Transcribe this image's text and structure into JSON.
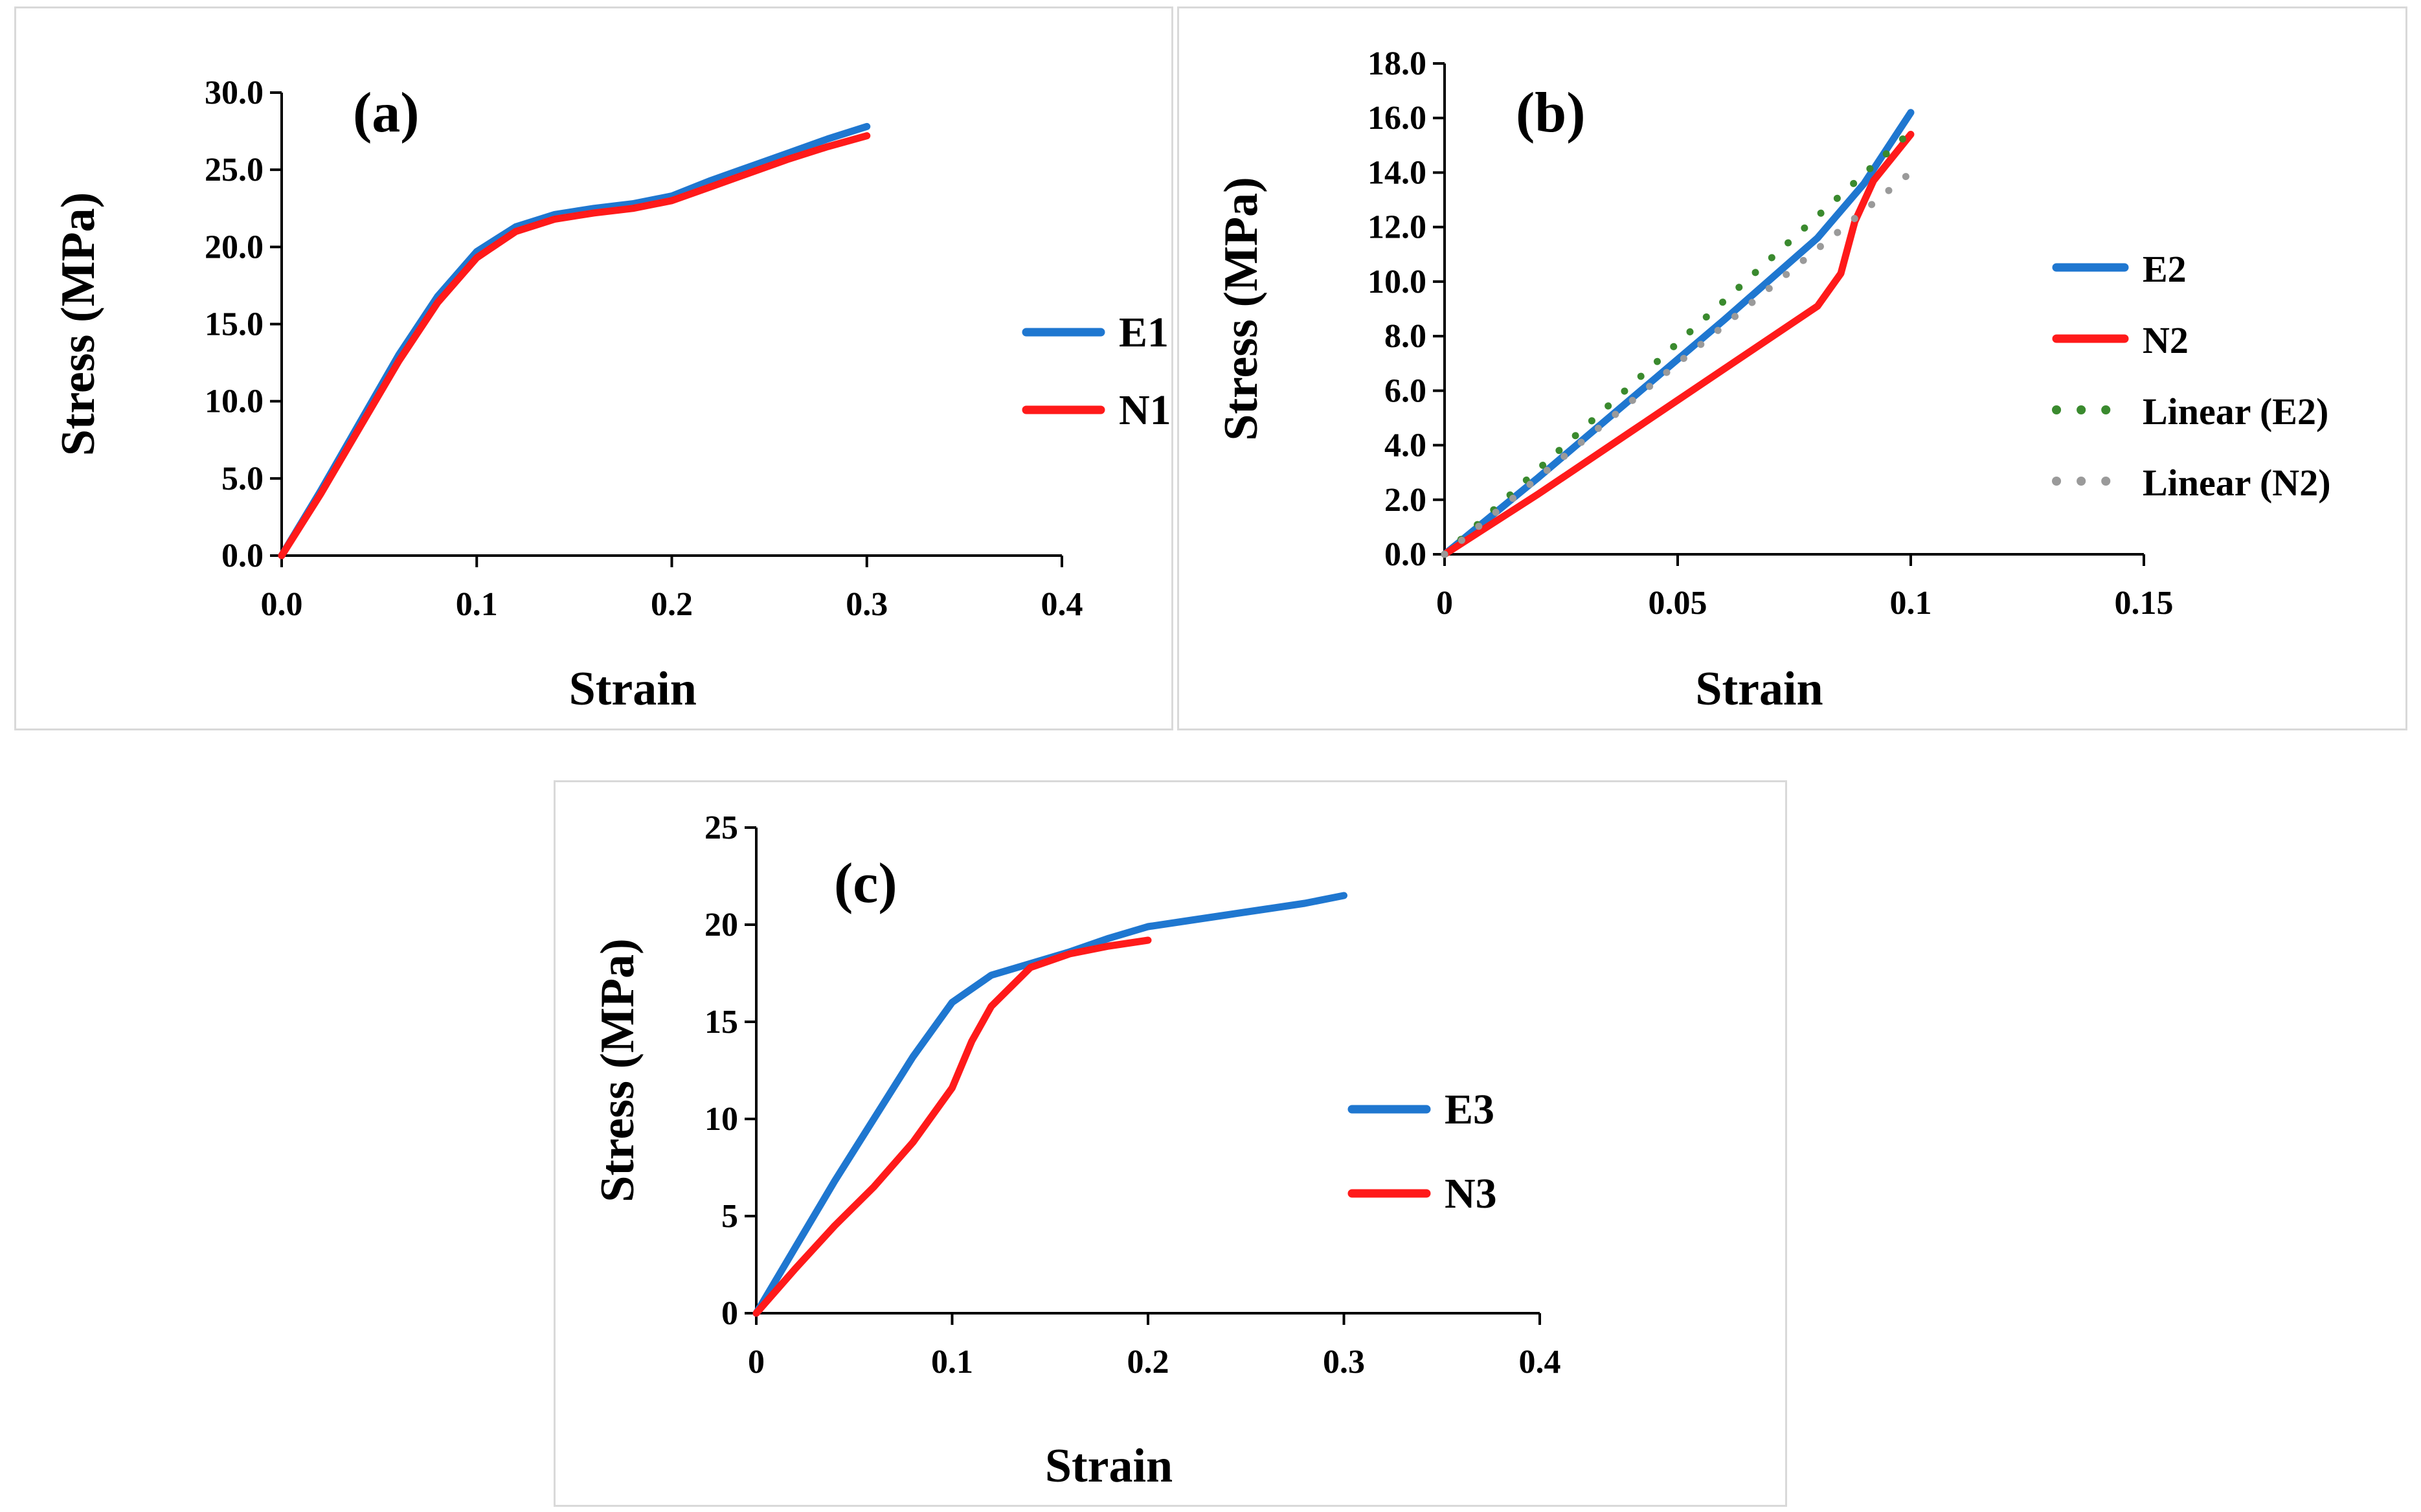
{
  "chart_data": [
    {
      "id": "a",
      "type": "line",
      "panel_label": "(a)",
      "xlabel": "Strain",
      "ylabel": "Stress (MPa)",
      "xlim": [
        0,
        0.4
      ],
      "ylim": [
        0,
        30
      ],
      "xticks": [
        "0.0",
        "0.1",
        "0.2",
        "0.3",
        "0.4"
      ],
      "xtick_values": [
        0,
        0.1,
        0.2,
        0.3,
        0.4
      ],
      "yticks": [
        "0.0",
        "5.0",
        "10.0",
        "15.0",
        "20.0",
        "25.0",
        "30.0"
      ],
      "ytick_values": [
        0,
        5,
        10,
        15,
        20,
        25,
        30
      ],
      "legend_position": "right",
      "series": [
        {
          "name": "E1",
          "color": "#1f77d0",
          "style": "solid",
          "x": [
            0,
            0.02,
            0.04,
            0.06,
            0.08,
            0.1,
            0.12,
            0.14,
            0.16,
            0.18,
            0.2,
            0.22,
            0.24,
            0.26,
            0.28,
            0.3
          ],
          "y": [
            0,
            4.2,
            8.6,
            13.0,
            16.8,
            19.7,
            21.3,
            22.1,
            22.5,
            22.8,
            23.3,
            24.3,
            25.2,
            26.1,
            27.0,
            27.8
          ]
        },
        {
          "name": "N1",
          "color": "#ff1a1a",
          "style": "solid",
          "x": [
            0,
            0.02,
            0.04,
            0.06,
            0.08,
            0.1,
            0.12,
            0.14,
            0.16,
            0.18,
            0.2,
            0.22,
            0.24,
            0.26,
            0.28,
            0.3
          ],
          "y": [
            0,
            4.0,
            8.3,
            12.6,
            16.4,
            19.3,
            21.0,
            21.8,
            22.2,
            22.5,
            23.0,
            23.9,
            24.8,
            25.7,
            26.5,
            27.2
          ]
        }
      ]
    },
    {
      "id": "b",
      "type": "line",
      "panel_label": "(b)",
      "xlabel": "Strain",
      "ylabel": "Stress (MPa)",
      "xlim": [
        0,
        0.15
      ],
      "ylim": [
        0,
        18
      ],
      "xticks": [
        "0",
        "0.05",
        "0.1",
        "0.15"
      ],
      "xtick_values": [
        0,
        0.05,
        0.1,
        0.15
      ],
      "yticks": [
        "0.0",
        "2.0",
        "4.0",
        "6.0",
        "8.0",
        "10.0",
        "12.0",
        "14.0",
        "16.0",
        "18.0"
      ],
      "ytick_values": [
        0,
        2,
        4,
        6,
        8,
        10,
        12,
        14,
        16,
        18
      ],
      "legend_position": "right",
      "series": [
        {
          "name": "E2",
          "color": "#1f77d0",
          "style": "solid",
          "x": [
            0,
            0.02,
            0.04,
            0.06,
            0.08,
            0.09,
            0.1
          ],
          "y": [
            0,
            2.8,
            5.7,
            8.6,
            11.6,
            13.6,
            16.2
          ]
        },
        {
          "name": "N2",
          "color": "#ff1a1a",
          "style": "solid",
          "x": [
            0,
            0.02,
            0.04,
            0.06,
            0.08,
            0.085,
            0.088,
            0.092,
            0.1
          ],
          "y": [
            0,
            2.2,
            4.5,
            6.8,
            9.1,
            10.3,
            12.2,
            13.7,
            15.4
          ]
        },
        {
          "name": "Linear (E2)",
          "color": "#3a8a2e",
          "style": "dotted",
          "x": [
            0,
            0.1
          ],
          "y": [
            0,
            15.5
          ]
        },
        {
          "name": "Linear (N2)",
          "color": "#9a9a9a",
          "style": "dotted",
          "x": [
            0,
            0.1
          ],
          "y": [
            0,
            14.0
          ]
        }
      ]
    },
    {
      "id": "c",
      "type": "line",
      "panel_label": "(c)",
      "xlabel": "Strain",
      "ylabel": "Stress (MPa)",
      "xlim": [
        0,
        0.4
      ],
      "ylim": [
        0,
        25
      ],
      "xticks": [
        "0",
        "0.1",
        "0.2",
        "0.3",
        "0.4"
      ],
      "xtick_values": [
        0,
        0.1,
        0.2,
        0.3,
        0.4
      ],
      "yticks": [
        "0",
        "5",
        "10",
        "15",
        "20",
        "25"
      ],
      "ytick_values": [
        0,
        5,
        10,
        15,
        20,
        25
      ],
      "legend_position": "right",
      "series": [
        {
          "name": "E3",
          "color": "#1f77d0",
          "style": "solid",
          "x": [
            0,
            0.02,
            0.04,
            0.06,
            0.08,
            0.1,
            0.12,
            0.14,
            0.16,
            0.18,
            0.2,
            0.22,
            0.24,
            0.26,
            0.28,
            0.3
          ],
          "y": [
            0,
            3.4,
            6.8,
            10.0,
            13.2,
            16.0,
            17.4,
            18.0,
            18.6,
            19.3,
            19.9,
            20.2,
            20.5,
            20.8,
            21.1,
            21.5
          ]
        },
        {
          "name": "N3",
          "color": "#ff1a1a",
          "style": "solid",
          "x": [
            0,
            0.02,
            0.04,
            0.06,
            0.08,
            0.1,
            0.11,
            0.12,
            0.14,
            0.16,
            0.18,
            0.2
          ],
          "y": [
            0,
            2.3,
            4.5,
            6.5,
            8.8,
            11.6,
            14.0,
            15.8,
            17.8,
            18.5,
            18.9,
            19.2
          ]
        }
      ]
    }
  ]
}
